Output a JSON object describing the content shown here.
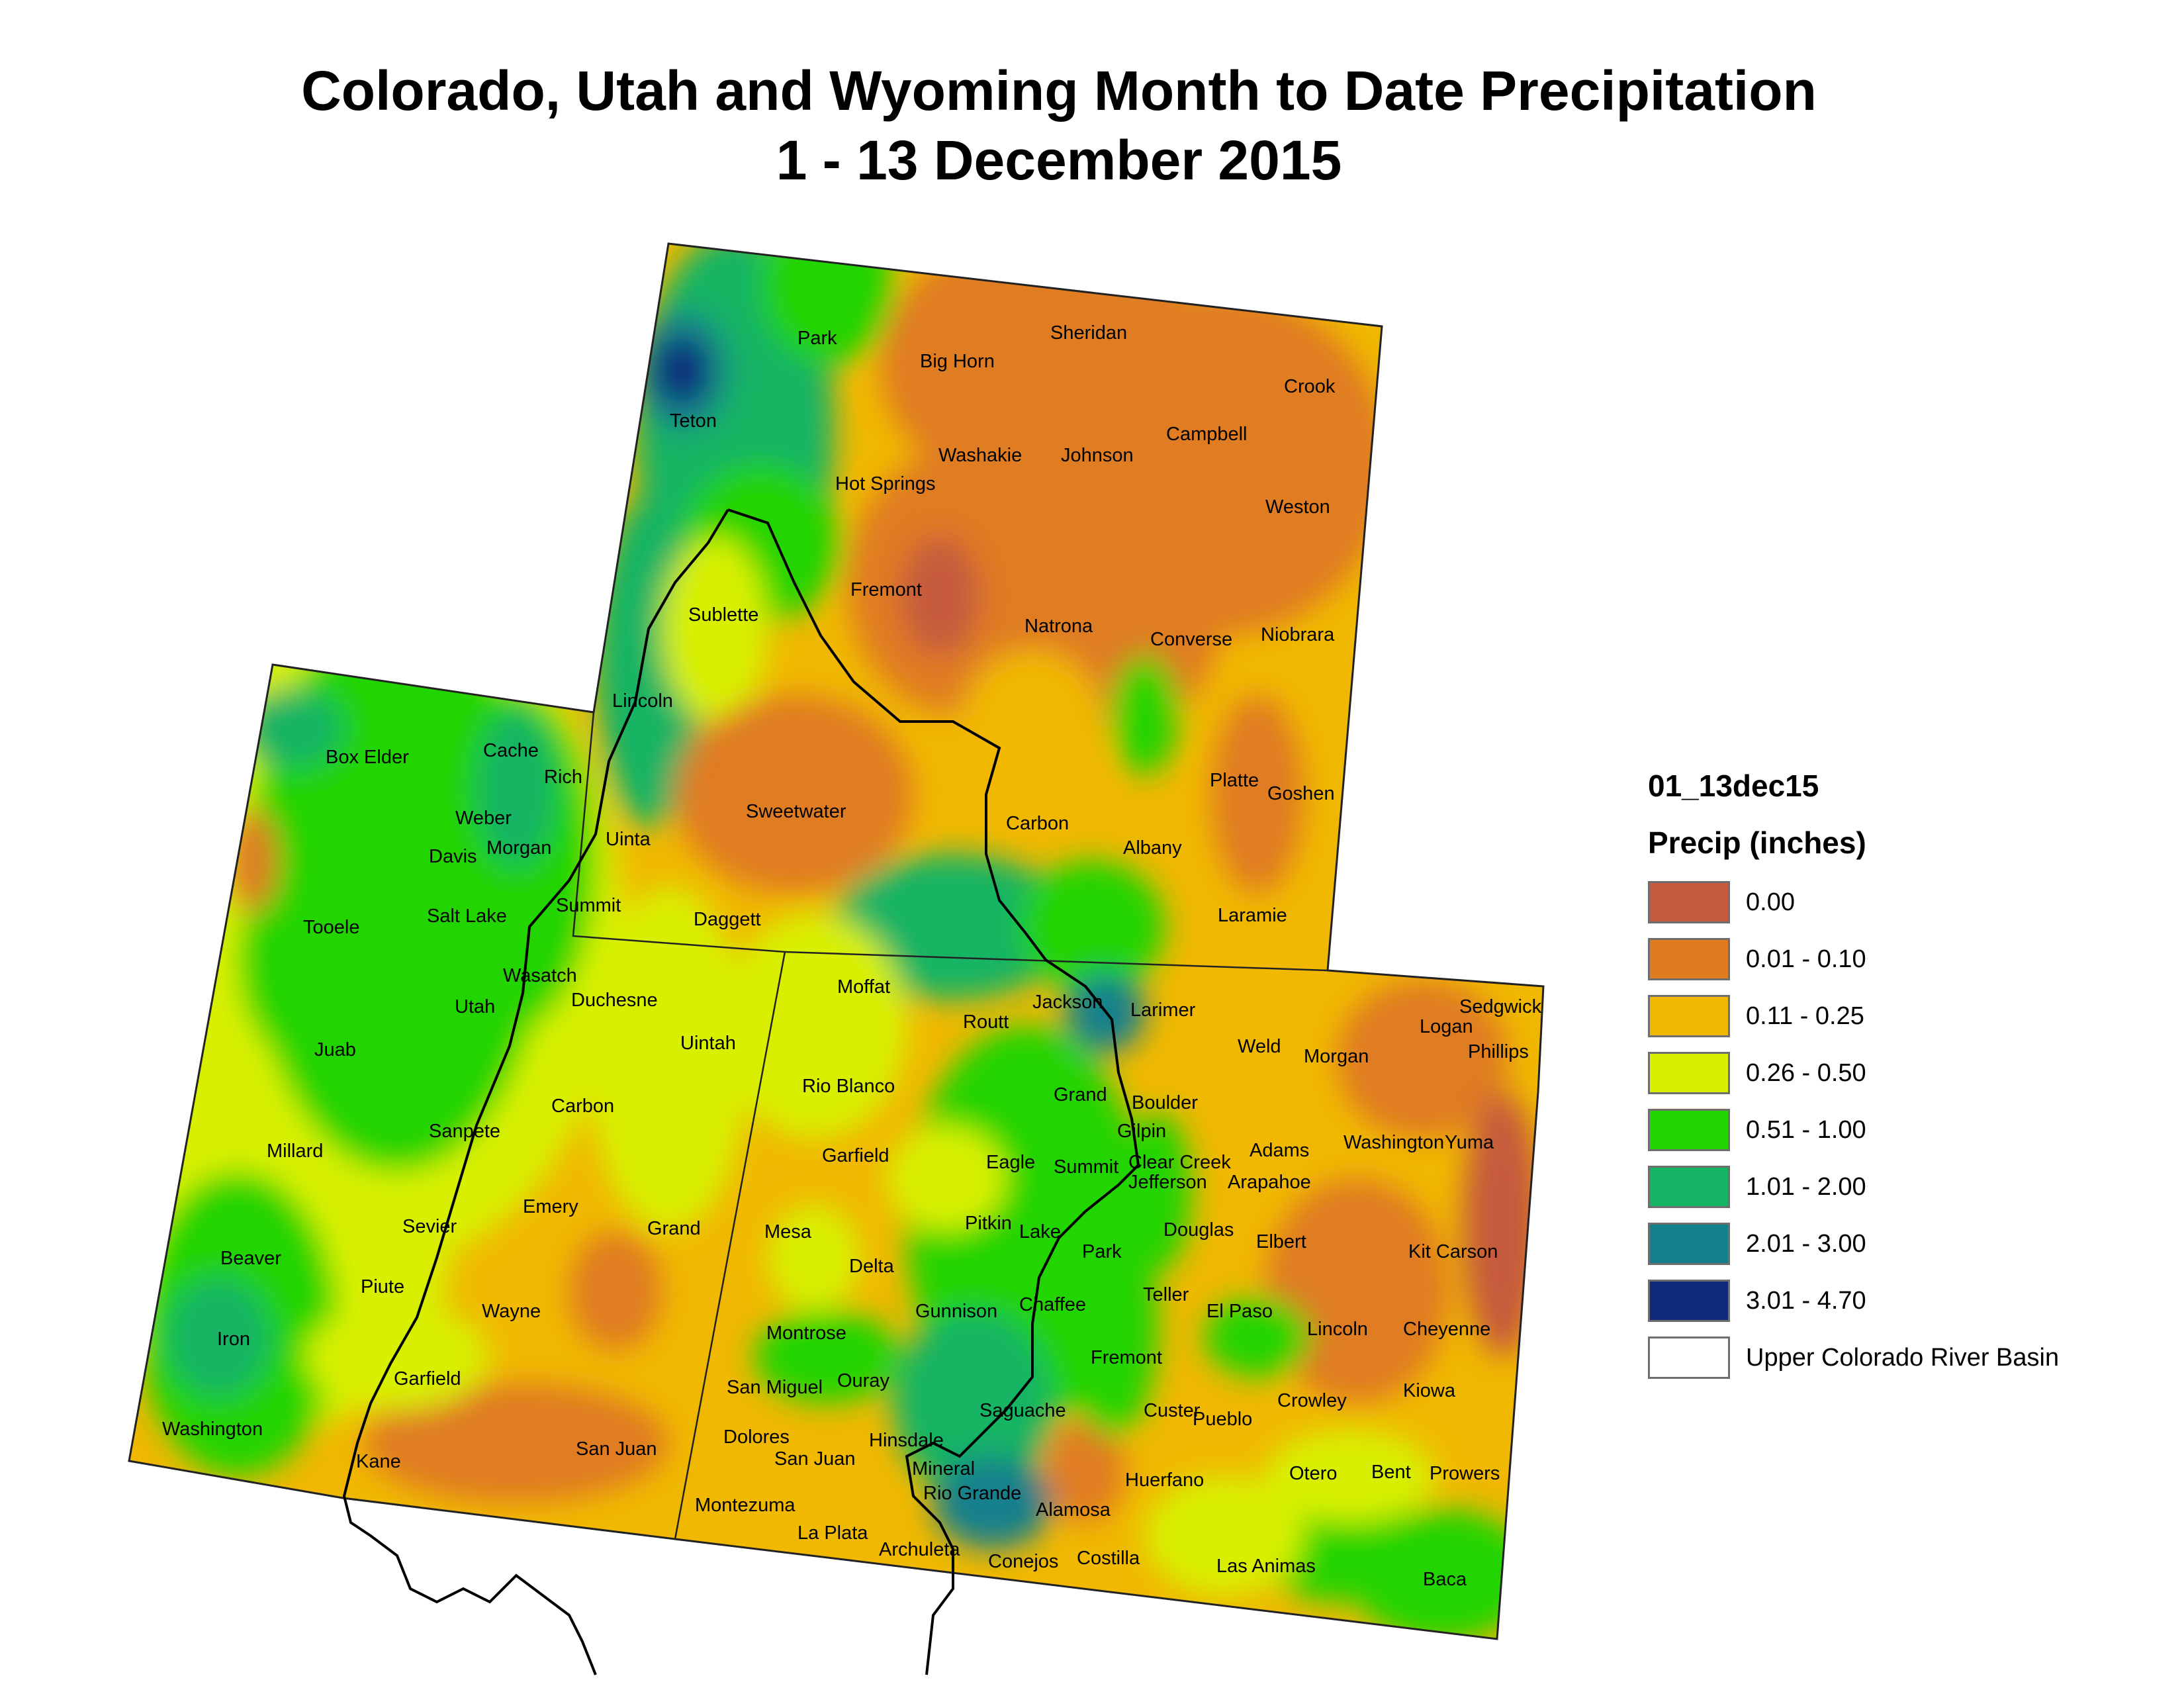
{
  "title_line1": "Colorado, Utah and Wyoming Month to Date Precipitation",
  "title_line2": "1 - 13 December 2015",
  "legend": {
    "layer": "01_13dec15",
    "field": "Precip (inches)",
    "classes": [
      {
        "label": "0.00",
        "color": "#c65a3c"
      },
      {
        "label": "0.01 - 0.10",
        "color": "#e07b20"
      },
      {
        "label": "0.11 - 0.25",
        "color": "#f0b800"
      },
      {
        "label": "0.26 - 0.50",
        "color": "#d8f000"
      },
      {
        "label": "0.51 - 1.00",
        "color": "#22d400"
      },
      {
        "label": "1.01 - 2.00",
        "color": "#14b464"
      },
      {
        "label": "2.01 - 3.00",
        "color": "#14808c"
      },
      {
        "label": "3.01 - 4.70",
        "color": "#10287a"
      }
    ],
    "basin_label": "Upper Colorado River Basin"
  },
  "counties": {
    "wyoming": [
      "Park",
      "Big Horn",
      "Sheridan",
      "Crook",
      "Teton",
      "Campbell",
      "Washakie",
      "Johnson",
      "Hot Springs",
      "Weston",
      "Fremont",
      "Natrona",
      "Sublette",
      "Converse",
      "Niobrara",
      "Lincoln",
      "Platte",
      "Goshen",
      "Sweetwater",
      "Carbon",
      "Albany",
      "Uinta",
      "Laramie"
    ],
    "utah": [
      "Box Elder",
      "Cache",
      "Rich",
      "Weber",
      "Davis",
      "Morgan",
      "Tooele",
      "Salt Lake",
      "Summit",
      "Daggett",
      "Wasatch",
      "Duchesne",
      "Utah",
      "Uintah",
      "Juab",
      "Carbon",
      "Sanpete",
      "Millard",
      "Emery",
      "Sevier",
      "Grand",
      "Beaver",
      "Piute",
      "Wayne",
      "Iron",
      "Garfield",
      "Washington",
      "Kane",
      "San Juan"
    ],
    "colorado": [
      "Moffat",
      "Jackson",
      "Larimer",
      "Sedgwick",
      "Logan",
      "Phillips",
      "Routt",
      "Weld",
      "Rio Blanco",
      "Grand",
      "Morgan",
      "Boulder",
      "Gilpin",
      "Garfield",
      "Eagle",
      "Summit",
      "Clear Creek",
      "Adams",
      "Washington",
      "Yuma",
      "Jefferson",
      "Arapahoe",
      "Mesa",
      "Pitkin",
      "Lake",
      "Douglas",
      "Elbert",
      "Kit Carson",
      "Park",
      "Delta",
      "Teller",
      "El Paso",
      "Gunnison",
      "Chaffee",
      "Lincoln",
      "Cheyenne",
      "Montrose",
      "Fremont",
      "San Miguel",
      "Ouray",
      "Saguache",
      "Custer",
      "Crowley",
      "Kiowa",
      "Pueblo",
      "Dolores",
      "Hinsdale",
      "San Juan",
      "Mineral",
      "Rio Grande",
      "Huerfano",
      "Otero",
      "Bent",
      "Prowers",
      "Montezuma",
      "Alamosa",
      "La Plata",
      "Archuleta",
      "Conejos",
      "Costilla",
      "Las Animas",
      "Baca"
    ]
  }
}
